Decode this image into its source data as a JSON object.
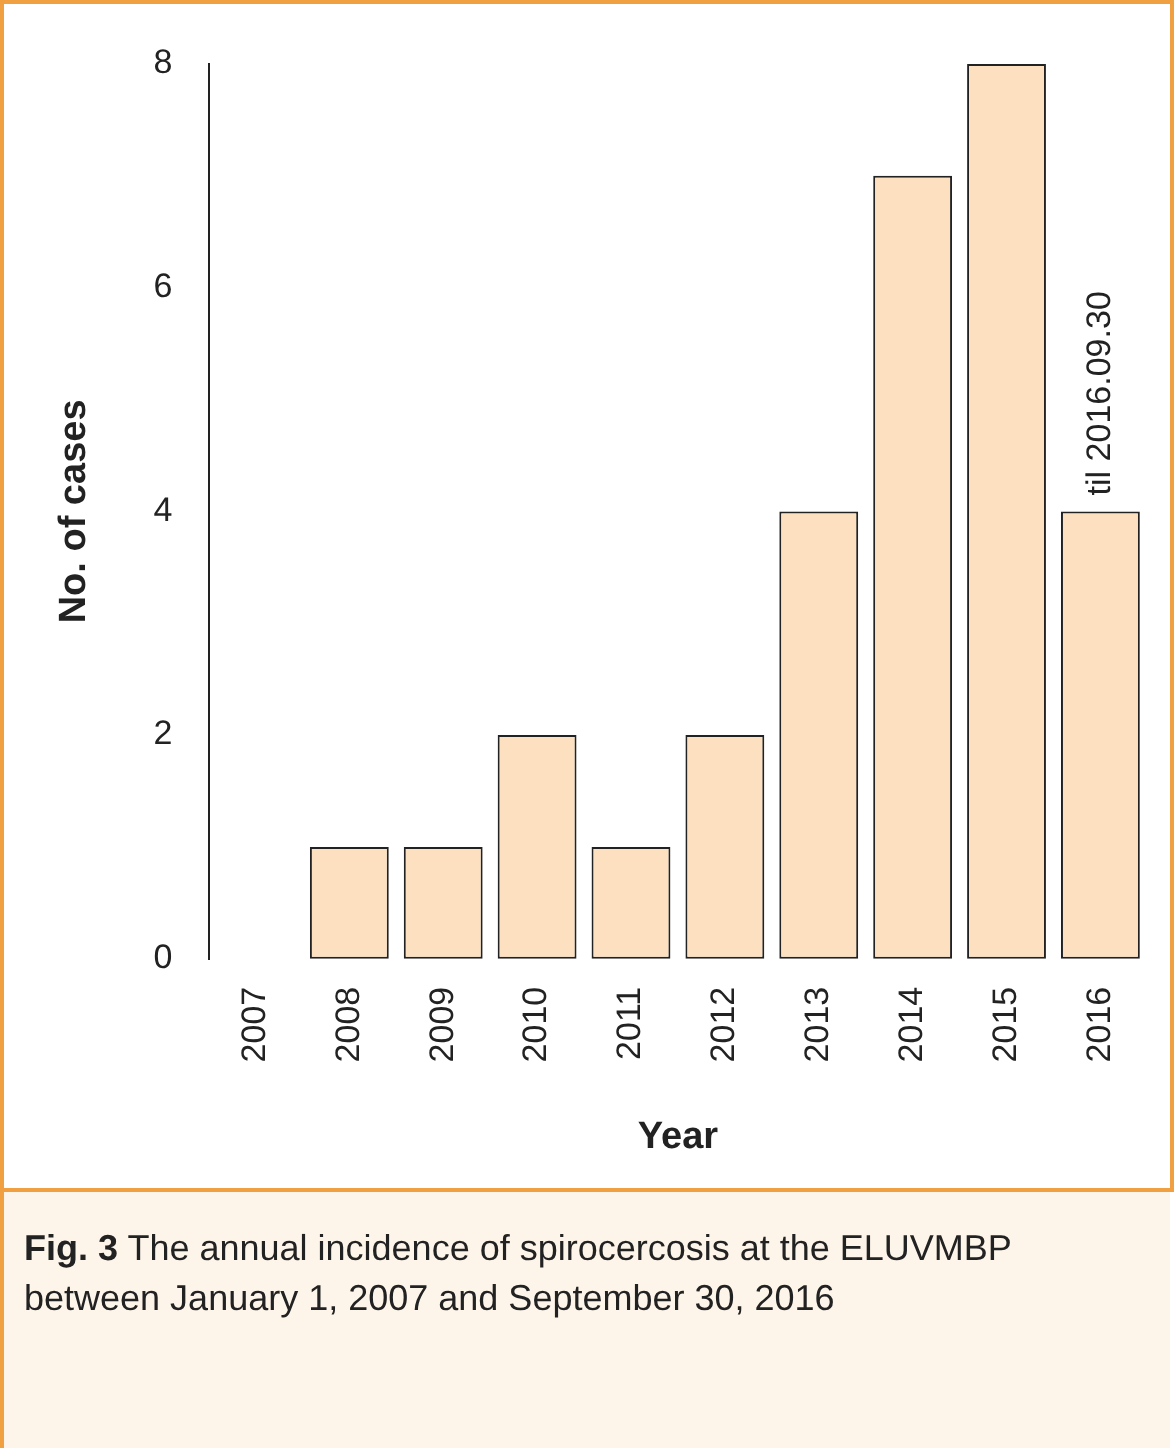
{
  "chart_data": {
    "type": "bar",
    "title": "Fig. 3",
    "xlabel": "Year",
    "ylabel": "No. of cases",
    "categories": [
      "2007",
      "2008",
      "2009",
      "2010",
      "2011",
      "2012",
      "2013",
      "2014",
      "2015",
      "2016"
    ],
    "values": [
      0,
      1,
      1,
      2,
      1,
      2,
      4,
      7,
      8,
      4
    ],
    "color": "#fde0bf",
    "ylim": [
      0,
      8
    ],
    "yticks": [
      0,
      2,
      4,
      6,
      8
    ],
    "grid": false,
    "legend": false,
    "annotations": [
      {
        "text": "til 2016.09.30",
        "x": "2016",
        "y": 4
      },
      "The annual incidence of spirocercosis at the ELUVMBP between January 1, 2007 and September 30, 2016"
    ]
  }
}
